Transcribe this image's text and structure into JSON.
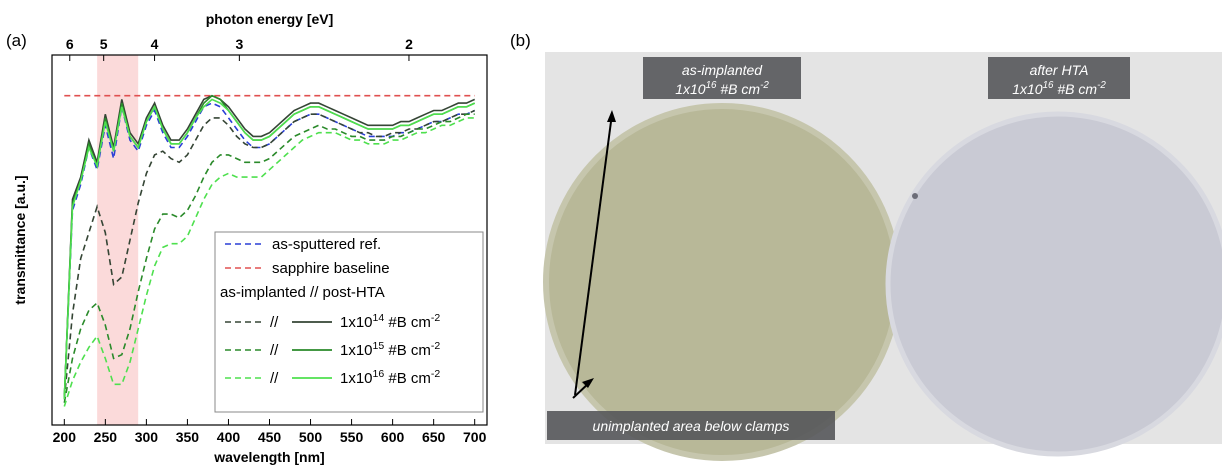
{
  "panel_labels": [
    "(a)",
    "(b)"
  ],
  "chart_data": {
    "type": "line",
    "xlabel": "wavelength [nm]",
    "ylabel": "transmittance [a.u.]",
    "x2label": "photon energy [eV]",
    "xlim": [
      185,
      715
    ],
    "xticks": [
      200,
      250,
      300,
      350,
      400,
      450,
      500,
      550,
      600,
      650,
      700
    ],
    "x2ticks": [
      6,
      5,
      4,
      3,
      2
    ],
    "ylim": [
      0,
      1
    ],
    "shade": {
      "range": [
        240,
        290
      ],
      "color": "#fbdada"
    },
    "x": [
      200,
      210,
      220,
      230,
      240,
      250,
      260,
      270,
      280,
      290,
      300,
      310,
      320,
      330,
      340,
      350,
      360,
      370,
      380,
      390,
      400,
      410,
      420,
      430,
      440,
      450,
      460,
      470,
      480,
      490,
      500,
      510,
      520,
      530,
      540,
      550,
      560,
      570,
      580,
      590,
      600,
      610,
      620,
      630,
      640,
      650,
      660,
      670,
      680,
      690,
      700
    ],
    "series": [
      {
        "name": "as-sputtered ref.",
        "color": "#2a3fd6",
        "dash": true,
        "values": [
          0.07,
          0.58,
          0.65,
          0.75,
          0.69,
          0.81,
          0.72,
          0.86,
          0.77,
          0.74,
          0.81,
          0.85,
          0.79,
          0.75,
          0.75,
          0.78,
          0.82,
          0.86,
          0.87,
          0.86,
          0.83,
          0.8,
          0.77,
          0.75,
          0.75,
          0.76,
          0.78,
          0.8,
          0.82,
          0.83,
          0.84,
          0.84,
          0.83,
          0.82,
          0.81,
          0.8,
          0.79,
          0.78,
          0.78,
          0.78,
          0.78,
          0.79,
          0.79,
          0.8,
          0.81,
          0.82,
          0.82,
          0.83,
          0.84,
          0.84,
          0.85
        ]
      },
      {
        "name": "sapphire baseline",
        "color": "#e05050",
        "dash": true,
        "x": [
          200,
          700
        ],
        "values": [
          0.89,
          0.89
        ]
      }
    ],
    "dose_groups": {
      "title": "as-implanted // post-HTA",
      "separator": "//",
      "groups": [
        {
          "name": [
            "1x10",
            "14",
            " #B cm",
            "-2"
          ],
          "color": "#354535",
          "as_implanted": [
            0.07,
            0.3,
            0.45,
            0.52,
            0.59,
            0.52,
            0.38,
            0.4,
            0.5,
            0.6,
            0.68,
            0.73,
            0.74,
            0.72,
            0.71,
            0.73,
            0.77,
            0.81,
            0.83,
            0.83,
            0.81,
            0.78,
            0.76,
            0.75,
            0.75,
            0.76,
            0.78,
            0.8,
            0.82,
            0.83,
            0.84,
            0.84,
            0.83,
            0.82,
            0.81,
            0.8,
            0.79,
            0.79,
            0.78,
            0.78,
            0.79,
            0.79,
            0.8,
            0.8,
            0.81,
            0.82,
            0.82,
            0.83,
            0.84,
            0.84,
            0.85
          ],
          "post_hta": [
            0.07,
            0.61,
            0.67,
            0.77,
            0.71,
            0.84,
            0.75,
            0.88,
            0.79,
            0.76,
            0.83,
            0.87,
            0.81,
            0.77,
            0.77,
            0.8,
            0.84,
            0.88,
            0.89,
            0.88,
            0.86,
            0.83,
            0.8,
            0.78,
            0.78,
            0.79,
            0.81,
            0.83,
            0.85,
            0.86,
            0.87,
            0.87,
            0.86,
            0.85,
            0.84,
            0.83,
            0.82,
            0.81,
            0.81,
            0.81,
            0.81,
            0.82,
            0.82,
            0.83,
            0.84,
            0.85,
            0.85,
            0.86,
            0.87,
            0.87,
            0.88
          ]
        },
        {
          "name": [
            "1x10",
            "15",
            " #B cm",
            "-2"
          ],
          "color": "#2a8a2a",
          "as_implanted": [
            0.06,
            0.18,
            0.26,
            0.31,
            0.33,
            0.27,
            0.18,
            0.19,
            0.26,
            0.36,
            0.45,
            0.53,
            0.57,
            0.57,
            0.56,
            0.58,
            0.62,
            0.67,
            0.71,
            0.73,
            0.73,
            0.72,
            0.71,
            0.71,
            0.71,
            0.72,
            0.74,
            0.76,
            0.78,
            0.79,
            0.8,
            0.81,
            0.8,
            0.8,
            0.79,
            0.78,
            0.78,
            0.77,
            0.77,
            0.77,
            0.78,
            0.78,
            0.79,
            0.8,
            0.8,
            0.81,
            0.82,
            0.82,
            0.83,
            0.84,
            0.84
          ],
          "post_hta": [
            0.07,
            0.6,
            0.66,
            0.76,
            0.7,
            0.83,
            0.74,
            0.87,
            0.78,
            0.75,
            0.82,
            0.86,
            0.8,
            0.76,
            0.76,
            0.79,
            0.83,
            0.87,
            0.89,
            0.88,
            0.85,
            0.82,
            0.79,
            0.77,
            0.77,
            0.78,
            0.8,
            0.82,
            0.84,
            0.85,
            0.86,
            0.86,
            0.85,
            0.84,
            0.83,
            0.82,
            0.81,
            0.8,
            0.8,
            0.8,
            0.8,
            0.81,
            0.81,
            0.82,
            0.83,
            0.84,
            0.84,
            0.85,
            0.86,
            0.86,
            0.87
          ]
        },
        {
          "name": [
            "1x10",
            "16",
            " #B cm",
            "-2"
          ],
          "color": "#4ee04e",
          "as_implanted": [
            0.05,
            0.12,
            0.17,
            0.21,
            0.24,
            0.18,
            0.11,
            0.11,
            0.17,
            0.26,
            0.35,
            0.43,
            0.48,
            0.49,
            0.49,
            0.51,
            0.56,
            0.61,
            0.65,
            0.67,
            0.68,
            0.67,
            0.67,
            0.67,
            0.67,
            0.69,
            0.71,
            0.73,
            0.75,
            0.77,
            0.78,
            0.79,
            0.79,
            0.79,
            0.78,
            0.77,
            0.77,
            0.76,
            0.76,
            0.76,
            0.77,
            0.77,
            0.78,
            0.79,
            0.79,
            0.8,
            0.81,
            0.81,
            0.82,
            0.83,
            0.83
          ],
          "post_hta": [
            0.07,
            0.59,
            0.66,
            0.75,
            0.7,
            0.82,
            0.74,
            0.86,
            0.78,
            0.75,
            0.82,
            0.86,
            0.8,
            0.76,
            0.76,
            0.79,
            0.83,
            0.86,
            0.88,
            0.87,
            0.85,
            0.82,
            0.79,
            0.77,
            0.77,
            0.78,
            0.8,
            0.82,
            0.84,
            0.85,
            0.86,
            0.86,
            0.85,
            0.84,
            0.83,
            0.82,
            0.81,
            0.8,
            0.8,
            0.8,
            0.8,
            0.81,
            0.81,
            0.82,
            0.83,
            0.84,
            0.84,
            0.85,
            0.86,
            0.86,
            0.87
          ]
        }
      ]
    }
  },
  "photo": {
    "left_label": {
      "line1": "as-implanted",
      "line2": [
        "1x10",
        "16",
        " #B cm",
        "-2"
      ]
    },
    "right_label": {
      "line1": "after HTA",
      "line2": [
        "1x10",
        "16",
        " #B cm",
        "-2"
      ]
    },
    "bottom_label": "unimplanted area below clamps"
  }
}
